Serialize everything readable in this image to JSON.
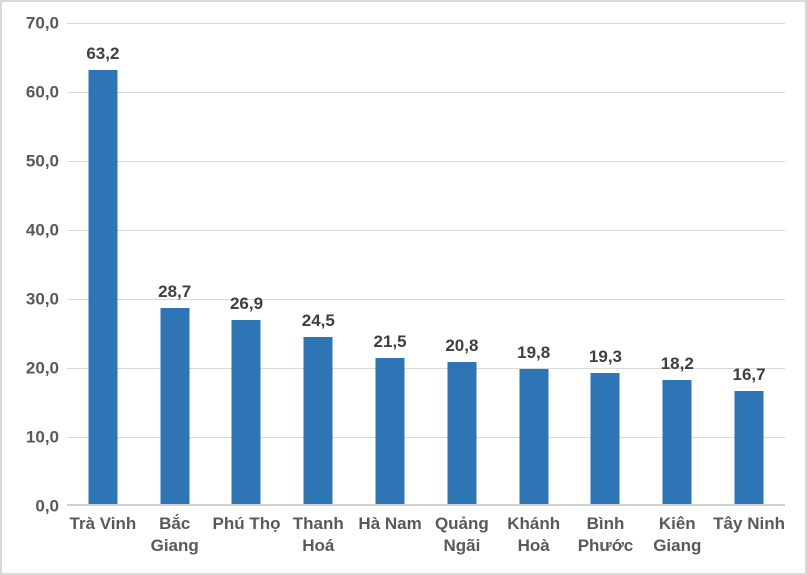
{
  "chart_data": {
    "type": "bar",
    "title": "",
    "xlabel": "",
    "ylabel": "",
    "categories": [
      "Trà Vinh",
      "Bắc Giang",
      "Phú Thọ",
      "Thanh Hoá",
      "Hà Nam",
      "Quảng Ngãi",
      "Khánh Hoà",
      "Bình Phước",
      "Kiên Giang",
      "Tây Ninh"
    ],
    "values": [
      63.2,
      28.7,
      26.9,
      24.5,
      21.5,
      20.8,
      19.8,
      19.3,
      18.2,
      16.7
    ],
    "value_labels": [
      "63,2",
      "28,7",
      "26,9",
      "24,5",
      "21,5",
      "20,8",
      "19,8",
      "19,3",
      "18,2",
      "16,7"
    ],
    "ylim": [
      0,
      70
    ],
    "y_tick_interval": 10,
    "y_ticks": [
      {
        "value": 0,
        "label": "0,0"
      },
      {
        "value": 10,
        "label": "10,0"
      },
      {
        "value": 20,
        "label": "20,0"
      },
      {
        "value": 30,
        "label": "30,0"
      },
      {
        "value": 40,
        "label": "40,0"
      },
      {
        "value": 50,
        "label": "50,0"
      },
      {
        "value": 60,
        "label": "60,0"
      },
      {
        "value": 70,
        "label": "70,0"
      }
    ],
    "grid": true,
    "legend": "none",
    "decimal_separator": ",",
    "colors": {
      "bar": "#2e75b6",
      "gridline": "#d9d9d9",
      "axis_text": "#595959",
      "value_label_text": "#3f3f3f",
      "frame_border": "#d9d9d9",
      "background": "#ffffff"
    }
  }
}
